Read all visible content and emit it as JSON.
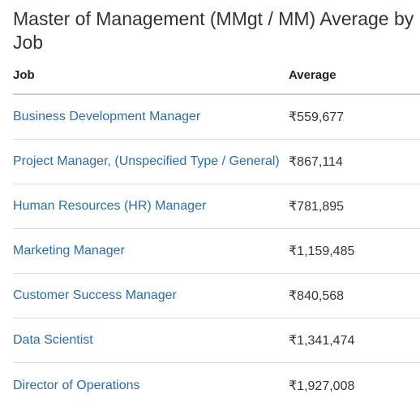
{
  "title": "Master of Management (MMgt / MM) Average by Job",
  "headers": {
    "job": "Job",
    "average": "Average"
  },
  "rows": [
    {
      "job": "Business Development Manager",
      "average": "₹559,677"
    },
    {
      "job": "Project Manager, (Unspecified Type / General)",
      "average": "₹867,114"
    },
    {
      "job": "Human Resources (HR) Manager",
      "average": "₹781,895"
    },
    {
      "job": "Marketing Manager",
      "average": "₹1,159,485"
    },
    {
      "job": "Customer Success Manager",
      "average": "₹840,568"
    },
    {
      "job": "Data Scientist",
      "average": "₹1,341,474"
    },
    {
      "job": "Director of Operations",
      "average": "₹1,927,008"
    }
  ],
  "colors": {
    "link": "#2e6da4",
    "text": "#333333",
    "divider": "#dddddd"
  }
}
